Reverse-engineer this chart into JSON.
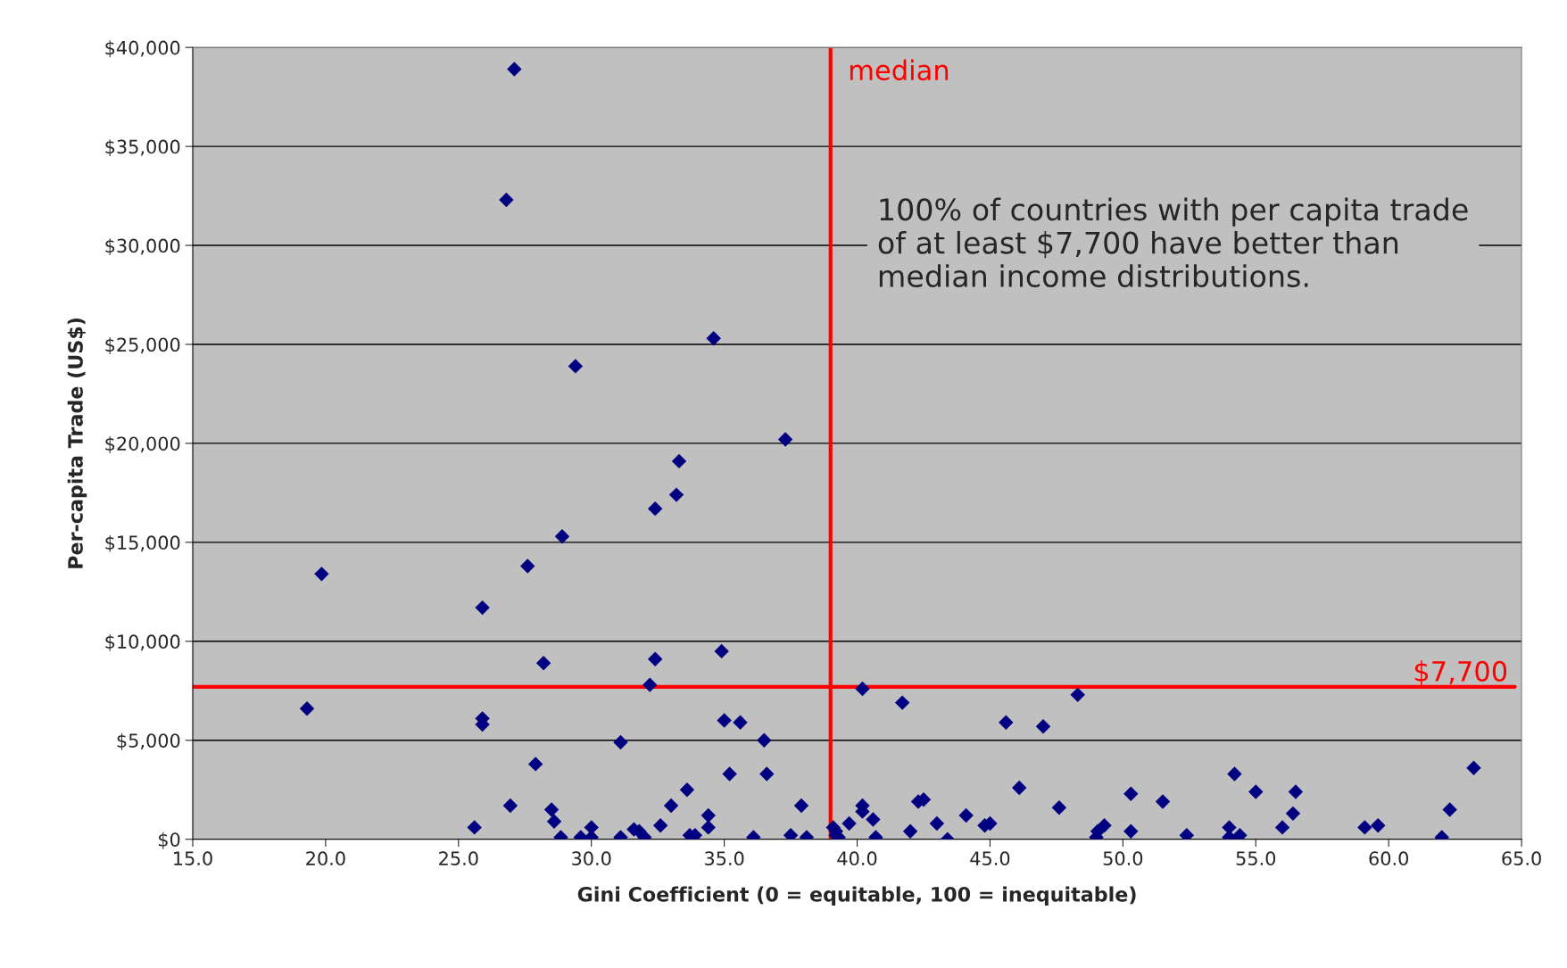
{
  "chart_data": {
    "type": "scatter",
    "xlabel": "Gini Coefficient (0 = equitable, 100 = inequitable)",
    "ylabel": "Per-capita Trade (US$)",
    "x": [
      19.3,
      19.85,
      25.6,
      25.9,
      25.9,
      25.9,
      26.8,
      27.1,
      26.95,
      27.6,
      27.9,
      28.2,
      28.5,
      28.6,
      28.85,
      28.9,
      29.4,
      29.6,
      30.0,
      30.0,
      31.1,
      31.1,
      31.6,
      31.8,
      32.0,
      32.2,
      32.4,
      32.4,
      32.6,
      33.0,
      33.2,
      33.3,
      33.6,
      33.7,
      33.9,
      34.4,
      34.4,
      34.6,
      34.9,
      35.0,
      35.2,
      35.6,
      36.1,
      36.5,
      36.6,
      37.3,
      37.5,
      37.9,
      38.1,
      39.1,
      39.2,
      39.3,
      39.2,
      39.7,
      40.2,
      40.2,
      40.2,
      40.6,
      40.7,
      41.7,
      42.0,
      42.3,
      42.5,
      43.0,
      43.4,
      44.1,
      44.8,
      45.0,
      45.6,
      46.1,
      47.0,
      47.6,
      48.3,
      49.0,
      49.05,
      49.3,
      50.3,
      50.3,
      51.5,
      52.4,
      54.0,
      54.0,
      54.2,
      54.4,
      55.0,
      56.0,
      56.4,
      56.5,
      59.1,
      59.6,
      62.0,
      62.3,
      63.2
    ],
    "series": [
      {
        "color": "#000080",
        "values": [
          6600,
          13400,
          600,
          11700,
          6100,
          5800,
          32300,
          38900,
          1700,
          13800,
          3800,
          8900,
          1500,
          900,
          100,
          15300,
          23900,
          100,
          600,
          100,
          4900,
          100,
          500,
          400,
          100,
          7800,
          16700,
          9100,
          700,
          1700,
          17400,
          19100,
          2500,
          200,
          200,
          1200,
          600,
          25300,
          9500,
          6000,
          3300,
          5900,
          100,
          5000,
          3300,
          20200,
          200,
          1700,
          100,
          600,
          400,
          100,
          200,
          800,
          1700,
          1400,
          7600,
          1000,
          100,
          6900,
          400,
          1900,
          2000,
          800,
          0,
          1200,
          700,
          800,
          5900,
          2600,
          5700,
          1600,
          7300,
          100,
          400,
          700,
          2300,
          400,
          1900,
          200,
          600,
          100,
          3300,
          200,
          2400,
          600,
          1300,
          2400,
          600,
          700,
          100,
          1500,
          3600
        ]
      }
    ],
    "xlim": [
      15,
      65
    ],
    "xticks": [
      {
        "value": 15,
        "label": "15.0"
      },
      {
        "value": 20,
        "label": "20.0"
      },
      {
        "value": 25,
        "label": "25.0"
      },
      {
        "value": 30,
        "label": "30.0"
      },
      {
        "value": 35,
        "label": "35.0"
      },
      {
        "value": 40,
        "label": "40.0"
      },
      {
        "value": 45,
        "label": "45.0"
      },
      {
        "value": 50,
        "label": "50.0"
      },
      {
        "value": 55,
        "label": "55.0"
      },
      {
        "value": 60,
        "label": "60.0"
      },
      {
        "value": 65,
        "label": "65.0"
      }
    ],
    "ylim": [
      0,
      40000
    ],
    "yticks": [
      {
        "value": 0,
        "label": "$0"
      },
      {
        "value": 5000,
        "label": "$5,000"
      },
      {
        "value": 10000,
        "label": "$10,000"
      },
      {
        "value": 15000,
        "label": "$15,000"
      },
      {
        "value": 20000,
        "label": "$20,000"
      },
      {
        "value": 25000,
        "label": "$25,000"
      },
      {
        "value": 30000,
        "label": "$30,000"
      },
      {
        "value": 35000,
        "label": "$35,000"
      },
      {
        "value": 40000,
        "label": "$40,000"
      }
    ],
    "ref_lines": [
      {
        "axis": "x",
        "value": 39.0,
        "label": "median",
        "color": "#ff0000"
      },
      {
        "axis": "y",
        "value": 7700,
        "label": "$7,700",
        "color": "#ff0000"
      }
    ],
    "annotations": [
      "100% of countries with per capita trade of at least $7,700 have better than median income distributions."
    ],
    "marker": "diamond",
    "grid": "y"
  }
}
